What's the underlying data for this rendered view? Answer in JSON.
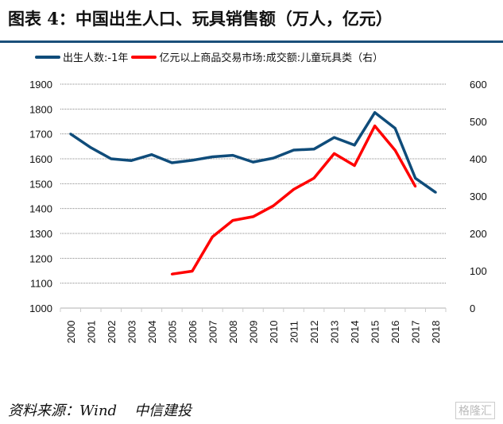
{
  "title": "图表 4：中国出生人口、玩具销售额（万人，亿元）",
  "source": "资料来源：Wind",
  "org": "中信建投",
  "watermark": "格隆汇",
  "chart_data": {
    "type": "line",
    "categories": [
      "2000",
      "2001",
      "2002",
      "2003",
      "2004",
      "2005",
      "2006",
      "2007",
      "2008",
      "2009",
      "2010",
      "2011",
      "2012",
      "2013",
      "2014",
      "2015",
      "2016",
      "2017",
      "2018"
    ],
    "left_axis": {
      "ylim": [
        1000,
        1900
      ],
      "ticks": [
        1000,
        1100,
        1200,
        1300,
        1400,
        1500,
        1600,
        1700,
        1800,
        1900
      ]
    },
    "right_axis": {
      "ylim": [
        0,
        600
      ],
      "ticks": [
        0,
        100,
        200,
        300,
        400,
        500,
        600
      ]
    },
    "grid": true,
    "legend_position": "top",
    "series": [
      {
        "name": "出生人数:-1年",
        "axis": "left",
        "color": "#0f4c7a",
        "values": [
          1700,
          1645,
          1600,
          1593,
          1617,
          1584,
          1594,
          1608,
          1614,
          1587,
          1603,
          1635,
          1639,
          1686,
          1655,
          1786,
          1723,
          1522,
          1465
        ]
      },
      {
        "name": "亿元以上商品交易市场:成交额:儿童玩具类（右）",
        "axis": "right",
        "color": "#ff0000",
        "values": [
          null,
          null,
          null,
          null,
          null,
          91,
          99,
          191,
          235,
          245,
          274,
          318,
          348,
          414,
          382,
          488,
          423,
          326,
          null
        ]
      }
    ]
  }
}
